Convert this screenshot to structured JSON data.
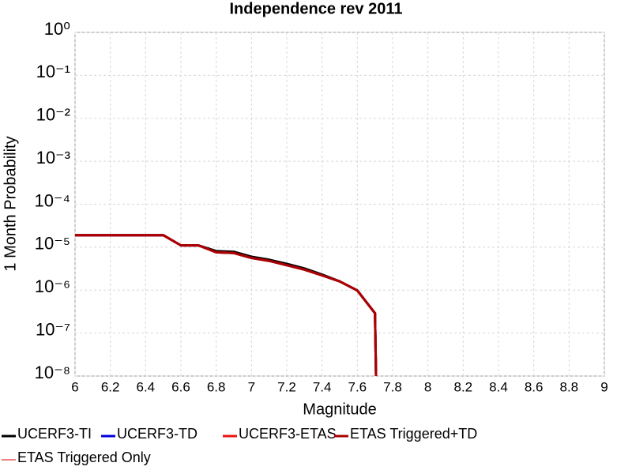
{
  "chart_data": {
    "type": "line",
    "title": "Independence rev 2011",
    "x_label": "Magnitude",
    "y_label": "1 Month Probability",
    "x": [
      6.0,
      6.1,
      6.2,
      6.3,
      6.4,
      6.5,
      6.6,
      6.7,
      6.8,
      6.9,
      7.0,
      7.1,
      7.2,
      7.3,
      7.4,
      7.5,
      7.6,
      7.7,
      7.71
    ],
    "series": [
      {
        "name": "UCERF3-TI",
        "color": "#000000",
        "values": [
          1.9e-05,
          1.9e-05,
          1.9e-05,
          1.9e-05,
          1.9e-05,
          1.9e-05,
          1.1e-05,
          1.1e-05,
          8.1e-06,
          7.8e-06,
          6e-06,
          5.1e-06,
          4.1e-06,
          3.2e-06,
          2.3e-06,
          1.6e-06,
          9.8e-07,
          2.9e-07,
          1e-09
        ]
      },
      {
        "name": "UCERF3-TD",
        "color": "#0000dd",
        "values": [
          1.9e-05,
          1.9e-05,
          1.9e-05,
          1.9e-05,
          1.9e-05,
          1.9e-05,
          1.1e-05,
          1.1e-05,
          7.6e-06,
          7.3e-06,
          5.6e-06,
          4.8e-06,
          3.8e-06,
          3e-06,
          2.2e-06,
          1.6e-06,
          9.8e-07,
          2.9e-07,
          1e-09
        ]
      },
      {
        "name": "UCERF3-ETAS",
        "color": "#ee1111",
        "values": [
          1.9e-05,
          1.9e-05,
          1.9e-05,
          1.9e-05,
          1.9e-05,
          1.9e-05,
          1.1e-05,
          1.1e-05,
          7.6e-06,
          7.3e-06,
          5.6e-06,
          4.8e-06,
          3.8e-06,
          3e-06,
          2.2e-06,
          1.6e-06,
          9.8e-07,
          2.9e-07,
          1e-09
        ]
      },
      {
        "name": "ETAS Triggered+TD",
        "color": "#aa0000",
        "values": [
          1.9e-05,
          1.9e-05,
          1.9e-05,
          1.9e-05,
          1.9e-05,
          1.9e-05,
          1.1e-05,
          1.1e-05,
          7.6e-06,
          7.3e-06,
          5.6e-06,
          4.8e-06,
          3.8e-06,
          3e-06,
          2.2e-06,
          1.6e-06,
          9.8e-07,
          2.9e-07,
          1e-09
        ]
      },
      {
        "name": "ETAS Triggered Only",
        "color": "#f08080",
        "values": [
          null,
          null,
          null,
          null,
          null,
          null,
          null,
          null,
          null,
          null,
          null,
          null,
          null,
          null,
          null,
          null,
          null,
          null,
          null
        ]
      }
    ],
    "xlim": [
      6,
      9
    ],
    "xticks": [
      6,
      6.2,
      6.4,
      6.6,
      6.8,
      7,
      7.2,
      7.4,
      7.6,
      7.8,
      8,
      8.2,
      8.4,
      8.6,
      8.8,
      9
    ],
    "ylim": [
      1e-08,
      1
    ],
    "yticks": [
      {
        "value": 1,
        "label": "10⁰"
      },
      {
        "value": 0.1,
        "label": "10⁻¹"
      },
      {
        "value": 0.01,
        "label": "10⁻²"
      },
      {
        "value": 0.001,
        "label": "10⁻³"
      },
      {
        "value": 0.0001,
        "label": "10⁻⁴"
      },
      {
        "value": 1e-05,
        "label": "10⁻⁵"
      },
      {
        "value": 1e-06,
        "label": "10⁻⁶"
      },
      {
        "value": 1e-07,
        "label": "10⁻⁷"
      },
      {
        "value": 1e-08,
        "label": "10⁻⁸"
      }
    ],
    "log_y": true,
    "grid": true,
    "legend_position": "bottom"
  }
}
